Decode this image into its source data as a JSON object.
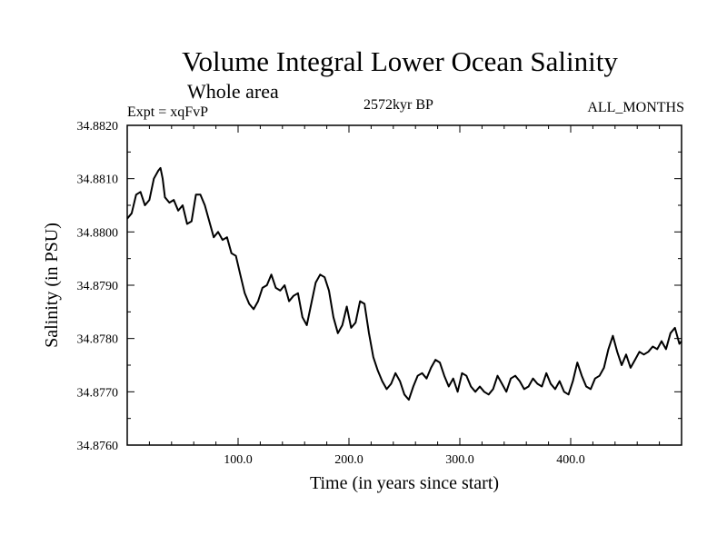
{
  "chart_data": {
    "type": "line",
    "title": "Volume Integral Lower Ocean Salinity",
    "subtitle": "Whole area",
    "experiment": "Expt = xqFvP",
    "period": "2572kyr BP",
    "months": "ALL_MONTHS",
    "xlabel": "Time (in years since start)",
    "ylabel": "Salinity (in PSU)",
    "xlim": [
      0,
      500
    ],
    "ylim": [
      34.876,
      34.882
    ],
    "x_ticks": [
      100,
      200,
      300,
      400
    ],
    "x_tick_labels": [
      "100.0",
      "200.0",
      "300.0",
      "400.0"
    ],
    "y_ticks": [
      34.876,
      34.877,
      34.878,
      34.879,
      34.88,
      34.881,
      34.882
    ],
    "y_tick_labels": [
      "34.8760",
      "34.8770",
      "34.8780",
      "34.8790",
      "34.8800",
      "34.8810",
      "34.8820"
    ],
    "grid": false,
    "series": [
      {
        "name": "salinity",
        "x": [
          0,
          4,
          8,
          12,
          16,
          20,
          24,
          28,
          30,
          32,
          34,
          38,
          42,
          46,
          50,
          54,
          58,
          62,
          66,
          70,
          74,
          78,
          82,
          86,
          90,
          94,
          98,
          102,
          106,
          110,
          114,
          118,
          122,
          126,
          130,
          134,
          138,
          142,
          146,
          150,
          154,
          158,
          162,
          166,
          170,
          174,
          178,
          182,
          186,
          190,
          194,
          198,
          202,
          206,
          210,
          214,
          218,
          222,
          226,
          230,
          234,
          238,
          242,
          246,
          250,
          254,
          258,
          262,
          266,
          270,
          274,
          278,
          282,
          286,
          290,
          294,
          298,
          302,
          306,
          310,
          314,
          318,
          322,
          326,
          330,
          334,
          338,
          342,
          346,
          350,
          354,
          358,
          362,
          366,
          370,
          374,
          378,
          382,
          386,
          390,
          394,
          398,
          402,
          406,
          410,
          414,
          418,
          422,
          426,
          430,
          434,
          438,
          442,
          446,
          450,
          454,
          458,
          462,
          466,
          470,
          474,
          478,
          482,
          486,
          490,
          494,
          498,
          500
        ],
        "values": [
          34.88025,
          34.88035,
          34.8807,
          34.88075,
          34.8805,
          34.8806,
          34.881,
          34.88115,
          34.8812,
          34.881,
          34.88065,
          34.88055,
          34.8806,
          34.8804,
          34.8805,
          34.88015,
          34.8802,
          34.8807,
          34.8807,
          34.8805,
          34.8802,
          34.8799,
          34.88,
          34.87985,
          34.8799,
          34.8796,
          34.87955,
          34.8792,
          34.87885,
          34.87865,
          34.87855,
          34.8787,
          34.87895,
          34.879,
          34.8792,
          34.87895,
          34.8789,
          34.879,
          34.8787,
          34.8788,
          34.87885,
          34.8784,
          34.87825,
          34.87865,
          34.87905,
          34.8792,
          34.87915,
          34.8789,
          34.8784,
          34.8781,
          34.87825,
          34.8786,
          34.8782,
          34.8783,
          34.8787,
          34.87865,
          34.8781,
          34.87765,
          34.8774,
          34.8772,
          34.87705,
          34.87715,
          34.87735,
          34.8772,
          34.87695,
          34.87685,
          34.8771,
          34.8773,
          34.87735,
          34.87725,
          34.87745,
          34.8776,
          34.87755,
          34.8773,
          34.8771,
          34.87725,
          34.877,
          34.87735,
          34.8773,
          34.8771,
          34.877,
          34.8771,
          34.877,
          34.87695,
          34.87705,
          34.8773,
          34.87715,
          34.877,
          34.87725,
          34.8773,
          34.8772,
          34.87705,
          34.8771,
          34.87725,
          34.87715,
          34.8771,
          34.87735,
          34.87715,
          34.87705,
          34.8772,
          34.877,
          34.87695,
          34.8772,
          34.87755,
          34.8773,
          34.8771,
          34.87705,
          34.87725,
          34.8773,
          34.87745,
          34.8778,
          34.87805,
          34.87775,
          34.8775,
          34.8777,
          34.87745,
          34.8776,
          34.87775,
          34.8777,
          34.87775,
          34.87785,
          34.8778,
          34.87795,
          34.8778,
          34.8781,
          34.8782,
          34.8779,
          34.87795
        ]
      }
    ]
  }
}
